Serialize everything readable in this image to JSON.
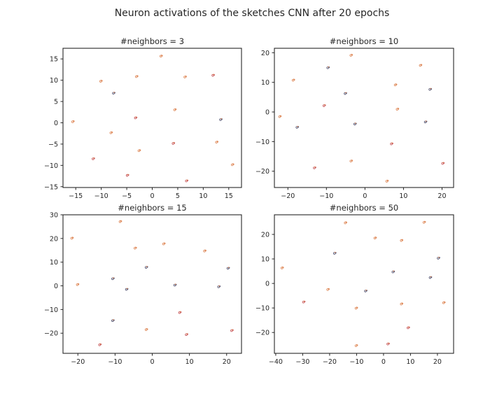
{
  "figure_title": "Neuron activations of the sketches CNN after 20 epochs",
  "colors": {
    "orange": "#dd8452",
    "navy": "#4c4c6a",
    "red": "#c44e52",
    "axes": "#262626"
  },
  "chart_data": [
    {
      "type": "scatter",
      "title": "#neighbors = 3",
      "xlim": [
        -17.5,
        17.5
      ],
      "ylim": [
        -15.2,
        17.5
      ],
      "xticks": [
        -15,
        -10,
        -5,
        0,
        5,
        10,
        15
      ],
      "yticks": [
        -15,
        -10,
        -5,
        0,
        5,
        10,
        15
      ],
      "xlabel": "",
      "ylabel": "",
      "points": [
        {
          "x": 1.8,
          "y": 15.7,
          "c": "orange"
        },
        {
          "x": -10.0,
          "y": 9.8,
          "c": "orange"
        },
        {
          "x": -3.0,
          "y": 10.9,
          "c": "orange"
        },
        {
          "x": 6.5,
          "y": 10.8,
          "c": "orange"
        },
        {
          "x": 12.0,
          "y": 11.2,
          "c": "red"
        },
        {
          "x": -7.5,
          "y": 7.0,
          "c": "navy"
        },
        {
          "x": 4.5,
          "y": 3.1,
          "c": "orange"
        },
        {
          "x": -3.2,
          "y": 1.2,
          "c": "red"
        },
        {
          "x": 13.5,
          "y": 0.8,
          "c": "navy"
        },
        {
          "x": -15.5,
          "y": 0.3,
          "c": "orange"
        },
        {
          "x": -8.0,
          "y": -2.3,
          "c": "orange"
        },
        {
          "x": 4.2,
          "y": -4.8,
          "c": "red"
        },
        {
          "x": 12.7,
          "y": -4.5,
          "c": "orange"
        },
        {
          "x": -2.5,
          "y": -6.5,
          "c": "orange"
        },
        {
          "x": -11.5,
          "y": -8.4,
          "c": "red"
        },
        {
          "x": 15.8,
          "y": -9.8,
          "c": "orange"
        },
        {
          "x": -4.8,
          "y": -12.3,
          "c": "red"
        },
        {
          "x": 6.8,
          "y": -13.6,
          "c": "red"
        }
      ]
    },
    {
      "type": "scatter",
      "title": "#neighbors = 10",
      "xlim": [
        -23.5,
        23
      ],
      "ylim": [
        -25.5,
        21.5
      ],
      "xticks": [
        -20,
        -10,
        0,
        10,
        20
      ],
      "yticks": [
        -20,
        -10,
        0,
        10,
        20
      ],
      "xlabel": "",
      "ylabel": "",
      "points": [
        {
          "x": -3.5,
          "y": 19.2,
          "c": "orange"
        },
        {
          "x": 14.5,
          "y": 15.8,
          "c": "orange"
        },
        {
          "x": -9.5,
          "y": 15.0,
          "c": "navy"
        },
        {
          "x": -18.5,
          "y": 10.8,
          "c": "orange"
        },
        {
          "x": 8.0,
          "y": 9.2,
          "c": "orange"
        },
        {
          "x": 17.0,
          "y": 7.7,
          "c": "navy"
        },
        {
          "x": -5.0,
          "y": 6.3,
          "c": "navy"
        },
        {
          "x": -10.5,
          "y": 2.2,
          "c": "red"
        },
        {
          "x": 8.5,
          "y": 1.0,
          "c": "orange"
        },
        {
          "x": -22.0,
          "y": -1.5,
          "c": "orange"
        },
        {
          "x": -2.5,
          "y": -4.0,
          "c": "navy"
        },
        {
          "x": 15.8,
          "y": -3.3,
          "c": "navy"
        },
        {
          "x": -17.5,
          "y": -5.1,
          "c": "navy"
        },
        {
          "x": 7.0,
          "y": -10.7,
          "c": "red"
        },
        {
          "x": -3.5,
          "y": -16.5,
          "c": "orange"
        },
        {
          "x": 20.3,
          "y": -17.3,
          "c": "red"
        },
        {
          "x": -13.0,
          "y": -18.8,
          "c": "red"
        },
        {
          "x": 5.8,
          "y": -23.3,
          "c": "orange"
        }
      ]
    },
    {
      "type": "scatter",
      "title": "#neighbors = 15",
      "xlim": [
        -24,
        24
      ],
      "ylim": [
        -28.5,
        30
      ],
      "xticks": [
        -20,
        -10,
        0,
        10,
        20
      ],
      "yticks": [
        -20,
        -10,
        0,
        10,
        20,
        30
      ],
      "xlabel": "",
      "ylabel": "",
      "points": [
        {
          "x": -8.5,
          "y": 27.2,
          "c": "orange"
        },
        {
          "x": -21.5,
          "y": 20.2,
          "c": "orange"
        },
        {
          "x": 3.2,
          "y": 17.8,
          "c": "orange"
        },
        {
          "x": -4.5,
          "y": 16.0,
          "c": "orange"
        },
        {
          "x": 14.2,
          "y": 14.8,
          "c": "orange"
        },
        {
          "x": -1.5,
          "y": 7.9,
          "c": "navy"
        },
        {
          "x": 20.5,
          "y": 7.5,
          "c": "navy"
        },
        {
          "x": -10.5,
          "y": 3.1,
          "c": "navy"
        },
        {
          "x": -20.0,
          "y": 0.6,
          "c": "orange"
        },
        {
          "x": 6.2,
          "y": 0.4,
          "c": "navy"
        },
        {
          "x": -6.8,
          "y": -1.4,
          "c": "navy"
        },
        {
          "x": 18.0,
          "y": -0.3,
          "c": "navy"
        },
        {
          "x": 7.5,
          "y": -11.2,
          "c": "red"
        },
        {
          "x": -10.5,
          "y": -14.6,
          "c": "navy"
        },
        {
          "x": -1.5,
          "y": -18.4,
          "c": "orange"
        },
        {
          "x": 21.5,
          "y": -18.8,
          "c": "red"
        },
        {
          "x": 9.3,
          "y": -20.5,
          "c": "red"
        },
        {
          "x": -14.0,
          "y": -24.8,
          "c": "red"
        }
      ]
    },
    {
      "type": "scatter",
      "title": "#neighbors = 50",
      "xlim": [
        -40.5,
        26
      ],
      "ylim": [
        -28.5,
        28
      ],
      "xticks": [
        -40,
        -30,
        -20,
        -10,
        0,
        10,
        20
      ],
      "yticks": [
        -20,
        -10,
        0,
        10,
        20
      ],
      "xlabel": "",
      "ylabel": "",
      "points": [
        {
          "x": -14.0,
          "y": 24.8,
          "c": "orange"
        },
        {
          "x": 15.2,
          "y": 25.0,
          "c": "orange"
        },
        {
          "x": -3.0,
          "y": 18.6,
          "c": "orange"
        },
        {
          "x": 6.8,
          "y": 17.6,
          "c": "orange"
        },
        {
          "x": -18.0,
          "y": 12.4,
          "c": "navy"
        },
        {
          "x": 20.5,
          "y": 10.4,
          "c": "navy"
        },
        {
          "x": -37.5,
          "y": 6.4,
          "c": "orange"
        },
        {
          "x": 3.7,
          "y": 4.8,
          "c": "navy"
        },
        {
          "x": 17.5,
          "y": 2.5,
          "c": "navy"
        },
        {
          "x": -20.5,
          "y": -2.4,
          "c": "orange"
        },
        {
          "x": -6.5,
          "y": -3.0,
          "c": "navy"
        },
        {
          "x": -29.5,
          "y": -7.5,
          "c": "red"
        },
        {
          "x": 6.8,
          "y": -8.3,
          "c": "orange"
        },
        {
          "x": 22.5,
          "y": -7.8,
          "c": "orange"
        },
        {
          "x": -10.0,
          "y": -10.0,
          "c": "orange"
        },
        {
          "x": 9.3,
          "y": -18.0,
          "c": "red"
        },
        {
          "x": -10.0,
          "y": -25.3,
          "c": "orange"
        },
        {
          "x": 1.8,
          "y": -24.6,
          "c": "red"
        }
      ]
    }
  ]
}
